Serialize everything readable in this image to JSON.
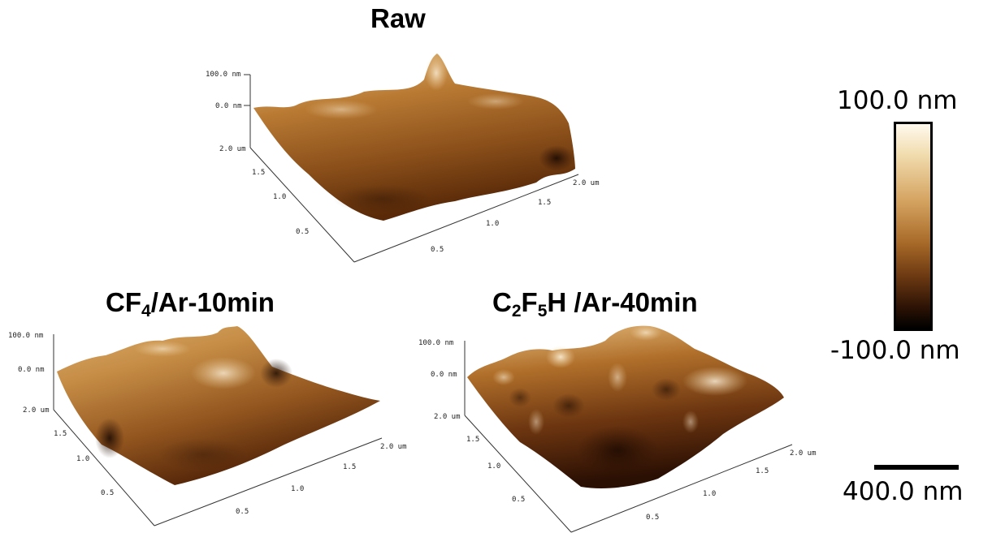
{
  "panels": [
    {
      "title": "Raw",
      "z_top": "100.0 nm",
      "z_mid": "0.0 nm",
      "ticks": [
        "2.0 um",
        "1.5",
        "1.0",
        "0.5",
        "0.5",
        "1.0",
        "1.5",
        "2.0 um"
      ]
    },
    {
      "title_main": "CF",
      "title_sub": "4",
      "title_rest": "/Ar-10min",
      "z_top": "100.0 nm",
      "z_mid": "0.0 nm",
      "ticks": [
        "2.0 um",
        "1.5",
        "1.0",
        "0.5",
        "0.5",
        "1.0",
        "1.5",
        "2.0 um"
      ]
    },
    {
      "title_c": "C",
      "title_sub1": "2",
      "title_f": "F",
      "title_sub2": "5",
      "title_rest": "H /Ar-40min",
      "z_top": "100.0 nm",
      "z_mid": "0.0 nm",
      "ticks": [
        "2.0 um",
        "1.5",
        "1.0",
        "0.5",
        "0.5",
        "1.0",
        "1.5",
        "2.0 um"
      ]
    }
  ],
  "colorbar": {
    "max_label": "100.0 nm",
    "min_label": "-100.0 nm"
  },
  "scalebar": {
    "label": "400.0 nm"
  },
  "colors": {
    "high": "#fff9ee",
    "mid": "#b87a35",
    "low": "#000000"
  }
}
